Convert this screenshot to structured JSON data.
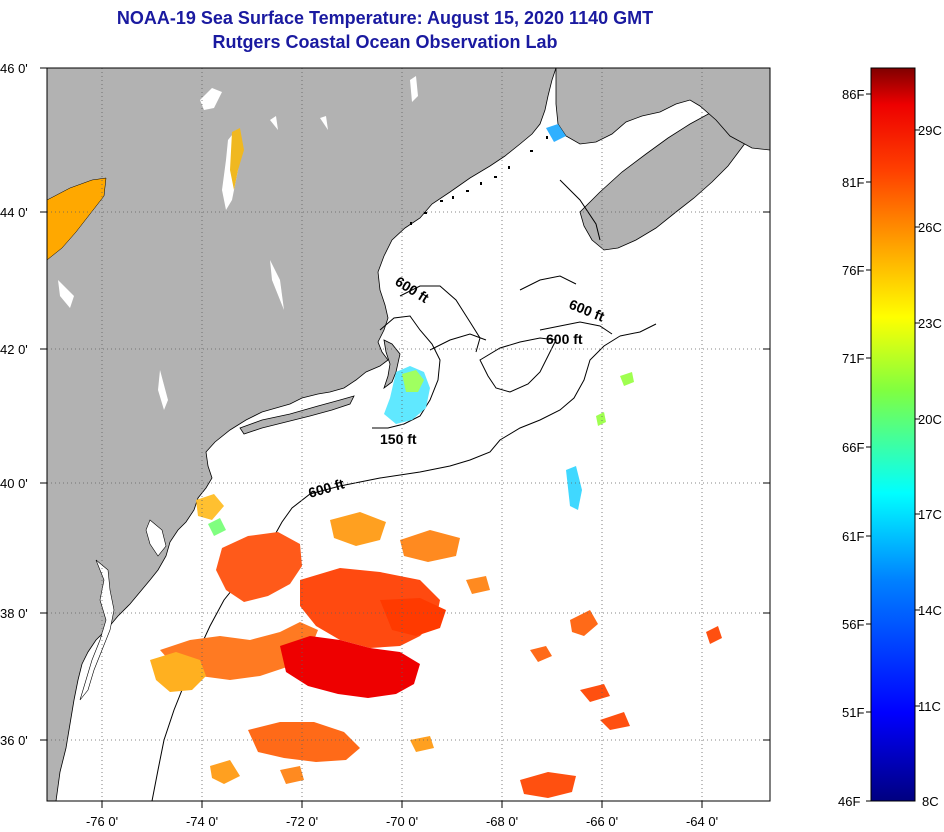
{
  "title": {
    "line1": "NOAA-19 Sea Surface Temperature:  August 15, 2020 1140 GMT",
    "line2": "Rutgers Coastal Ocean Observation Lab"
  },
  "axes": {
    "lat_labels": [
      "46 0'",
      "44 0'",
      "42 0'",
      "40 0'",
      "38 0'",
      "36 0'"
    ],
    "lon_labels": [
      "-76 0'",
      "-74 0'",
      "-72 0'",
      "-70 0'",
      "-68 0'",
      "-66 0'",
      "-64 0'"
    ]
  },
  "contours": {
    "label_600_a": "600 ft",
    "label_600_b": "600 ft",
    "label_600_c": "600 ft",
    "label_600_d": "600 ft",
    "label_150": "150 ft"
  },
  "colorbar": {
    "fahrenheit": [
      "86F",
      "81F",
      "76F",
      "71F",
      "66F",
      "61F",
      "56F",
      "51F",
      "46F"
    ],
    "celsius": [
      "29C",
      "26C",
      "23C",
      "20C",
      "17C",
      "14C",
      "11C",
      "8C"
    ]
  },
  "colors": {
    "land": "#b2b2b2",
    "ocean": "#ffffff",
    "title": "#1a1aa0",
    "warm": "#ff2a00",
    "hot": "#ee0000",
    "orange": "#ff7a10",
    "yellow": "#ffc020"
  }
}
